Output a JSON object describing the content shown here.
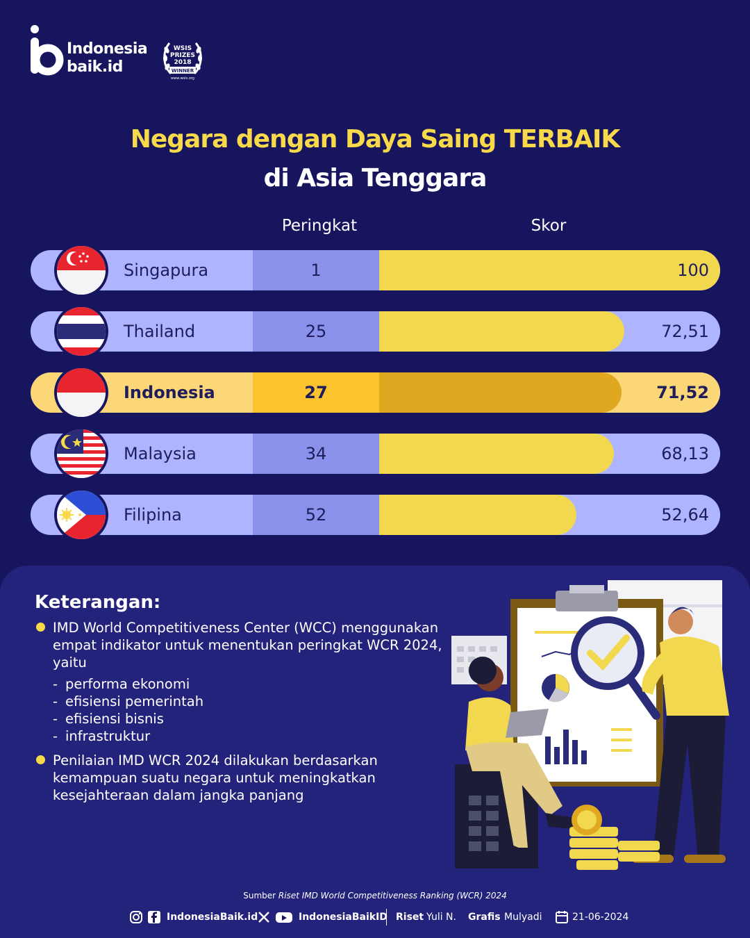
{
  "brand": {
    "line1": "Indonesia",
    "line2": "baik.id",
    "award": [
      "WSIS",
      "PRIZES",
      "2018",
      "WINNER"
    ],
    "award_url": "www.wsis.org"
  },
  "title": {
    "line1": "Negara dengan Daya Saing TERBAIK",
    "line2": "di Asia Tenggara"
  },
  "columns": {
    "rank": "Peringkat",
    "score": "Skor"
  },
  "chart_data": {
    "type": "bar",
    "orientation": "horizontal",
    "title": "Negara dengan Daya Saing TERBAIK di Asia Tenggara",
    "categories": [
      "Singapura",
      "Thailand",
      "Indonesia",
      "Malaysia",
      "Filipina"
    ],
    "series": [
      {
        "name": "Peringkat",
        "values": [
          1,
          25,
          27,
          34,
          52
        ]
      },
      {
        "name": "Skor",
        "values": [
          100,
          72.51,
          71.52,
          68.13,
          52.64
        ]
      }
    ],
    "labels": {
      "rank": [
        "1",
        "25",
        "27",
        "34",
        "52"
      ],
      "score": [
        "100",
        "72,51",
        "71,52",
        "68,13",
        "52,64"
      ]
    },
    "xlim": [
      0,
      100
    ],
    "highlight": "Indonesia",
    "colors": {
      "bar": "#f2d84e",
      "bar_highlight": "#e0a820",
      "row": "#aeb4ff",
      "row_highlight": "#fbd778"
    }
  },
  "flags": [
    "singapore-flag-icon",
    "thailand-flag-icon",
    "indonesia-flag-icon",
    "malaysia-flag-icon",
    "philippines-flag-icon"
  ],
  "notes": {
    "title": "Keterangan:",
    "items": [
      {
        "text": "IMD World Competitiveness Center (WCC) menggunakan empat indikator untuk menentukan peringkat WCR 2024, yaitu",
        "subitems": [
          "performa ekonomi",
          "efisiensi pemerintah",
          "efisiensi bisnis",
          "infrastruktur"
        ]
      },
      {
        "text": "Penilaian IMD WCR 2024 dilakukan berdasarkan kemampuan suatu negara untuk meningkatkan kesejahteraan dalam jangka panjang"
      }
    ]
  },
  "source": {
    "prefix": "Sumber",
    "text": "Riset IMD World Competitiveness Ranking (WCR) 2024"
  },
  "footer": {
    "handle1": "IndonesiaBaik.id",
    "handle2": "IndonesiaBaikID",
    "riset_label": "Riset",
    "riset_name": "Yuli N.",
    "grafis_label": "Grafis",
    "grafis_name": "Mulyadi",
    "date": "21-06-2024"
  },
  "palette": {
    "background": "#17155e",
    "panel": "#24237b",
    "accent": "#f8d94a"
  }
}
